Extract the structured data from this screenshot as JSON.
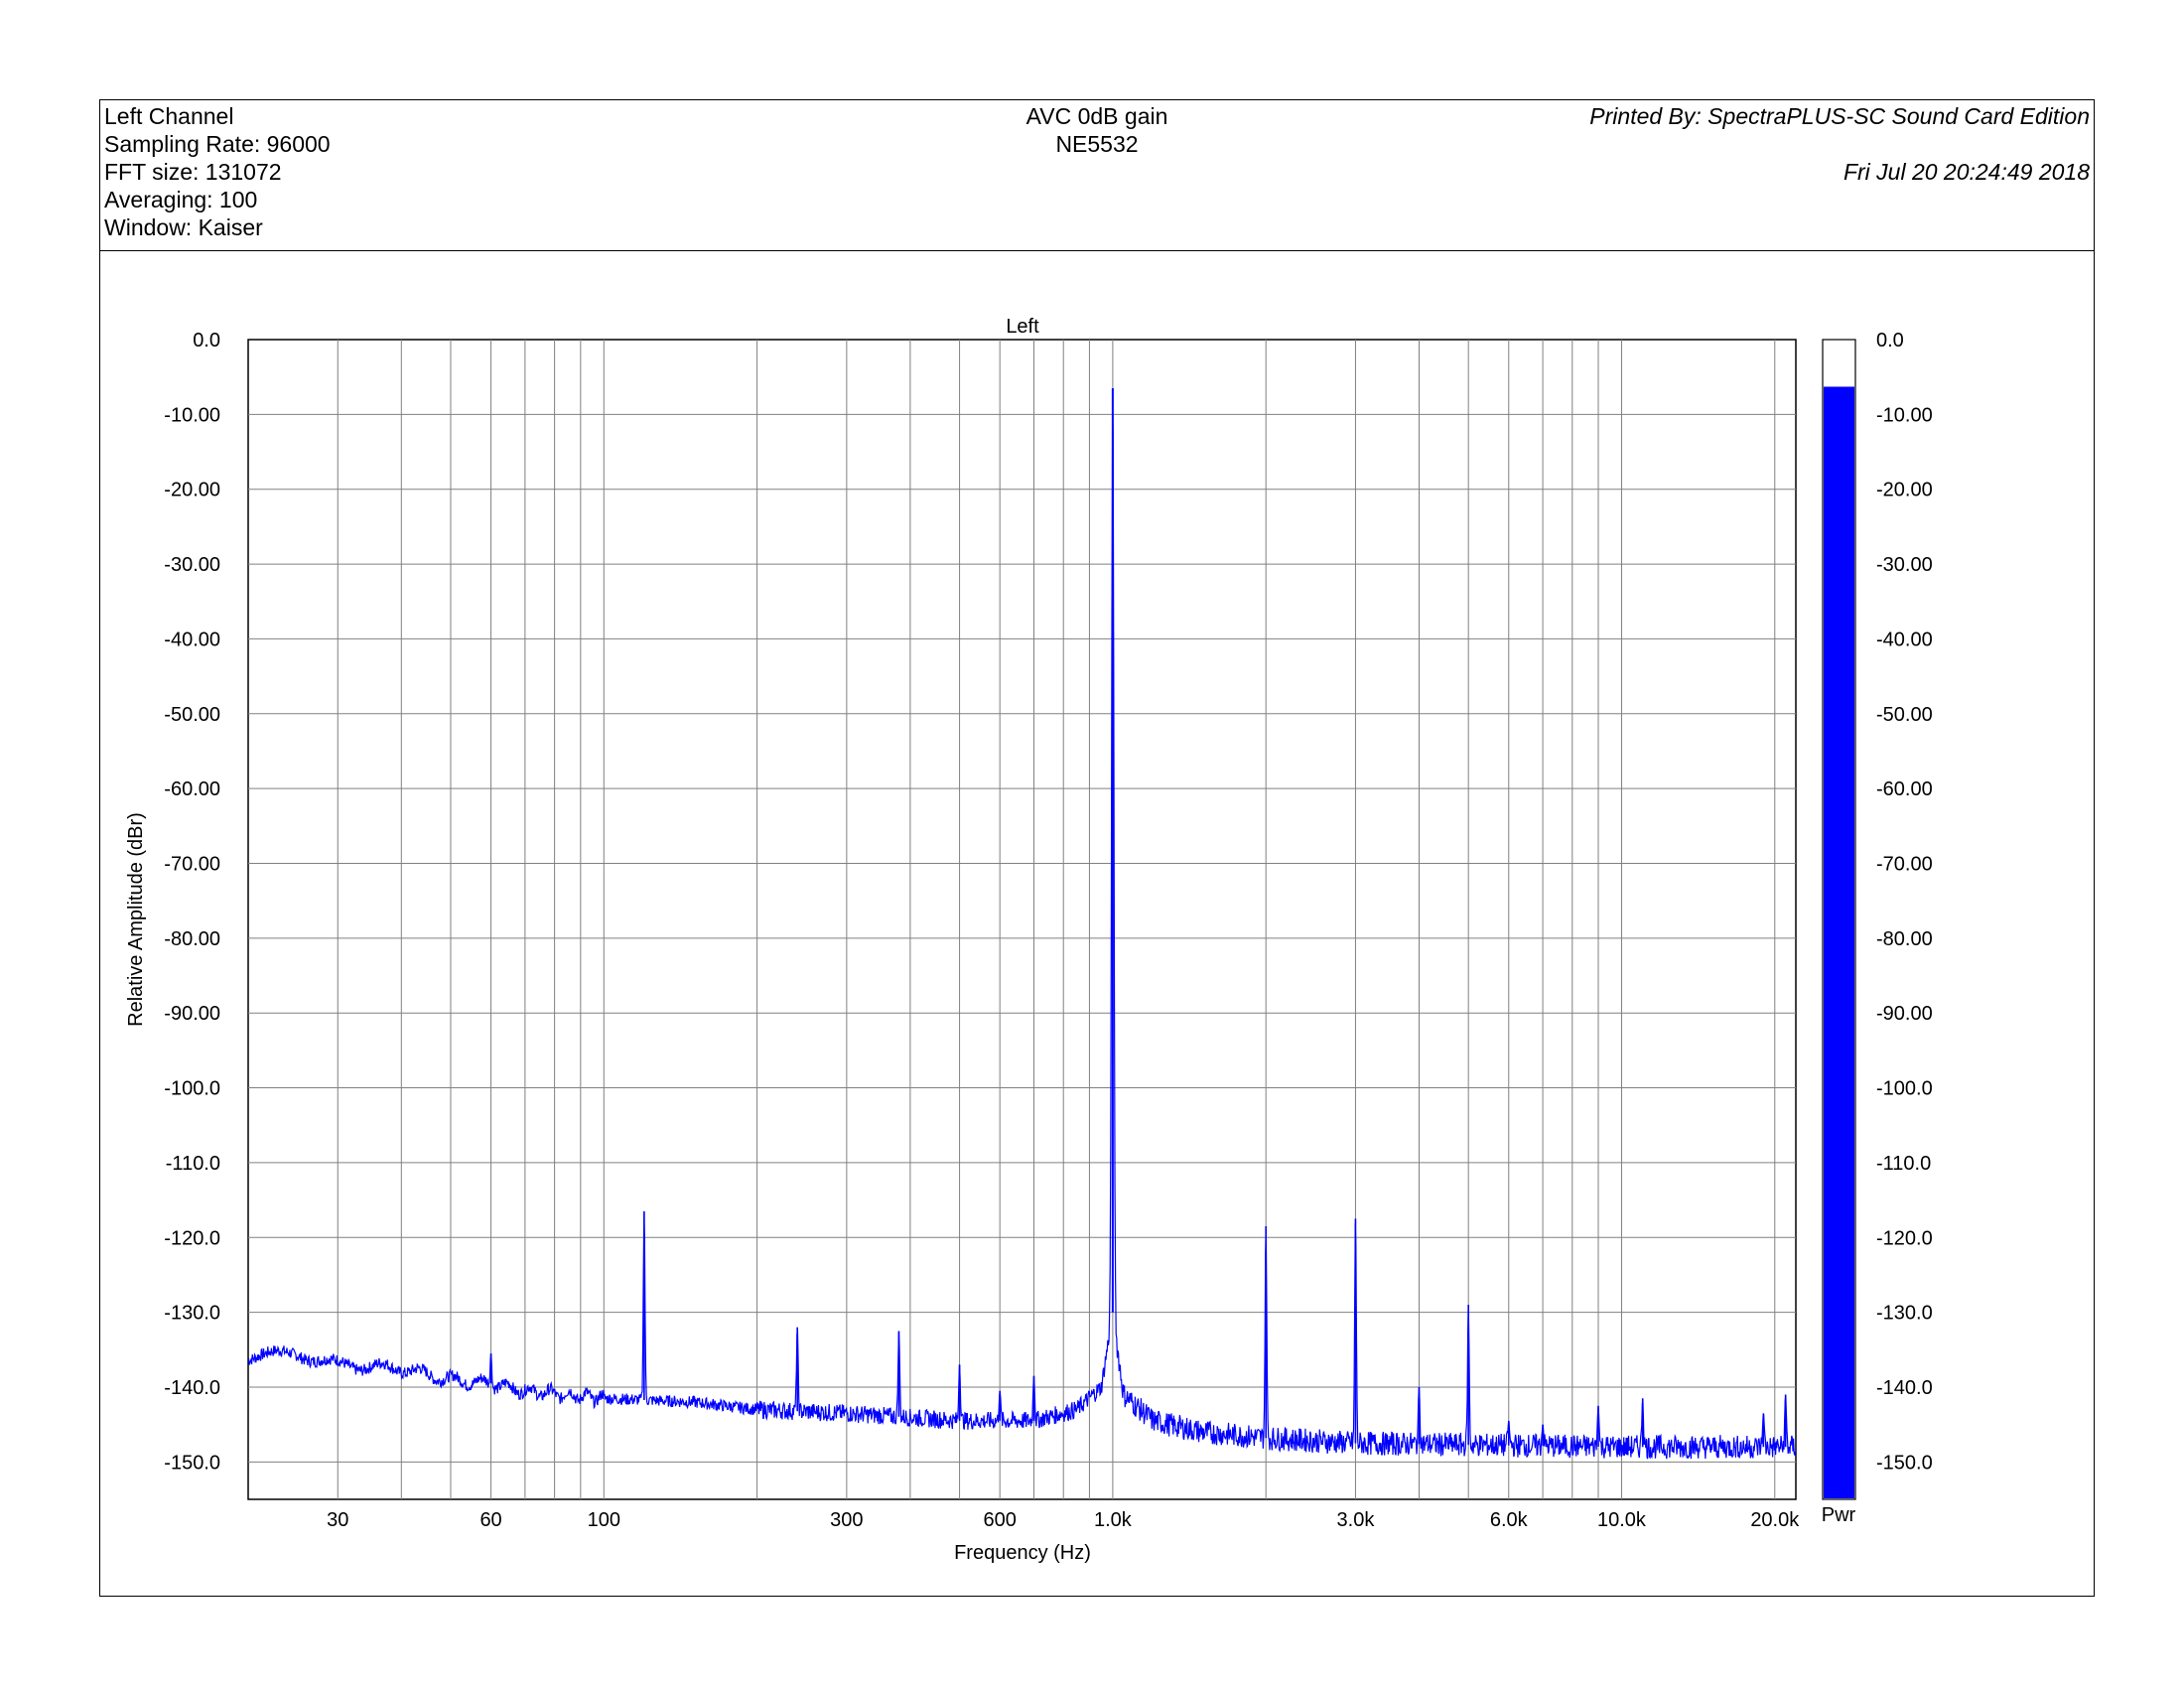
{
  "header": {
    "left": [
      "Left Channel",
      "Sampling Rate: 96000",
      "FFT size: 131072",
      "Averaging: 100",
      "Window: Kaiser"
    ],
    "center": [
      "AVC 0dB gain",
      "NE5532"
    ],
    "printed_by": "Printed By: SpectraPLUS-SC Sound Card Edition",
    "timestamp": "Fri Jul 20 20:24:49 2018"
  },
  "colors": {
    "trace": "#0000ff",
    "grid": "#808080",
    "meter_fill": "#0000ff"
  },
  "meter": {
    "label": "Pwr",
    "level_dbr": -6.3,
    "ticks": [
      "0.0",
      "-10.00",
      "-20.00",
      "-30.00",
      "-40.00",
      "-50.00",
      "-60.00",
      "-70.00",
      "-80.00",
      "-90.00",
      "-100.0",
      "-110.0",
      "-120.0",
      "-130.0",
      "-140.0",
      "-150.0"
    ]
  },
  "chart_data": {
    "type": "line",
    "title": "Left",
    "xlabel": "Frequency (Hz)",
    "ylabel": "Relative Amplitude (dBr)",
    "xscale": "log",
    "xlim": [
      20,
      22000
    ],
    "ylim": [
      -155,
      0
    ],
    "grid": true,
    "x_tick_labels": [
      {
        "f": 30,
        "label": "30"
      },
      {
        "f": 60,
        "label": "60"
      },
      {
        "f": 100,
        "label": "100"
      },
      {
        "f": 300,
        "label": "300"
      },
      {
        "f": 600,
        "label": "600"
      },
      {
        "f": 1000,
        "label": "1.0k"
      },
      {
        "f": 3000,
        "label": "3.0k"
      },
      {
        "f": 6000,
        "label": "6.0k"
      },
      {
        "f": 10000,
        "label": "10.0k"
      },
      {
        "f": 20000,
        "label": "20.0k"
      }
    ],
    "y_ticks": [
      {
        "v": 0,
        "label": "0.0"
      },
      {
        "v": -10,
        "label": "-10.00"
      },
      {
        "v": -20,
        "label": "-20.00"
      },
      {
        "v": -30,
        "label": "-30.00"
      },
      {
        "v": -40,
        "label": "-40.00"
      },
      {
        "v": -50,
        "label": "-50.00"
      },
      {
        "v": -60,
        "label": "-60.00"
      },
      {
        "v": -70,
        "label": "-70.00"
      },
      {
        "v": -80,
        "label": "-80.00"
      },
      {
        "v": -90,
        "label": "-90.00"
      },
      {
        "v": -100,
        "label": "-100.0"
      },
      {
        "v": -110,
        "label": "-110.0"
      },
      {
        "v": -120,
        "label": "-120.0"
      },
      {
        "v": -130,
        "label": "-130.0"
      },
      {
        "v": -140,
        "label": "-140.0"
      },
      {
        "v": -150,
        "label": "-150.0"
      }
    ],
    "series": [
      {
        "noise_floor": [
          {
            "f": 20,
            "db": -136
          },
          {
            "f": 25,
            "db": -135.5
          },
          {
            "f": 30,
            "db": -137
          },
          {
            "f": 40,
            "db": -137.5
          },
          {
            "f": 50,
            "db": -139
          },
          {
            "f": 60,
            "db": -139.5
          },
          {
            "f": 70,
            "db": -140.5
          },
          {
            "f": 100,
            "db": -141.5
          },
          {
            "f": 150,
            "db": -142
          },
          {
            "f": 200,
            "db": -143
          },
          {
            "f": 300,
            "db": -143.5
          },
          {
            "f": 500,
            "db": -144.5
          },
          {
            "f": 700,
            "db": -144.5
          },
          {
            "f": 850,
            "db": -143
          },
          {
            "f": 950,
            "db": -140
          },
          {
            "f": 1000,
            "db": -130
          },
          {
            "f": 1050,
            "db": -141
          },
          {
            "f": 1200,
            "db": -144.5
          },
          {
            "f": 1500,
            "db": -146
          },
          {
            "f": 2000,
            "db": -146.8
          },
          {
            "f": 3000,
            "db": -147.5
          },
          {
            "f": 10000,
            "db": -148
          },
          {
            "f": 22000,
            "db": -148
          }
        ],
        "peaks": [
          {
            "f": 60,
            "db": -135.5
          },
          {
            "f": 120,
            "db": -116.5
          },
          {
            "f": 240,
            "db": -132
          },
          {
            "f": 380,
            "db": -132.5
          },
          {
            "f": 500,
            "db": -137
          },
          {
            "f": 600,
            "db": -140.5
          },
          {
            "f": 700,
            "db": -138.5
          },
          {
            "f": 1000,
            "db": -6.5
          },
          {
            "f": 2000,
            "db": -118.5
          },
          {
            "f": 3000,
            "db": -117.5
          },
          {
            "f": 4000,
            "db": -140
          },
          {
            "f": 5000,
            "db": -129
          },
          {
            "f": 6000,
            "db": -144.5
          },
          {
            "f": 7000,
            "db": -145
          },
          {
            "f": 9000,
            "db": -142.5
          },
          {
            "f": 11000,
            "db": -141.5
          },
          {
            "f": 19000,
            "db": -143.5
          },
          {
            "f": 21000,
            "db": -141
          }
        ]
      }
    ]
  }
}
